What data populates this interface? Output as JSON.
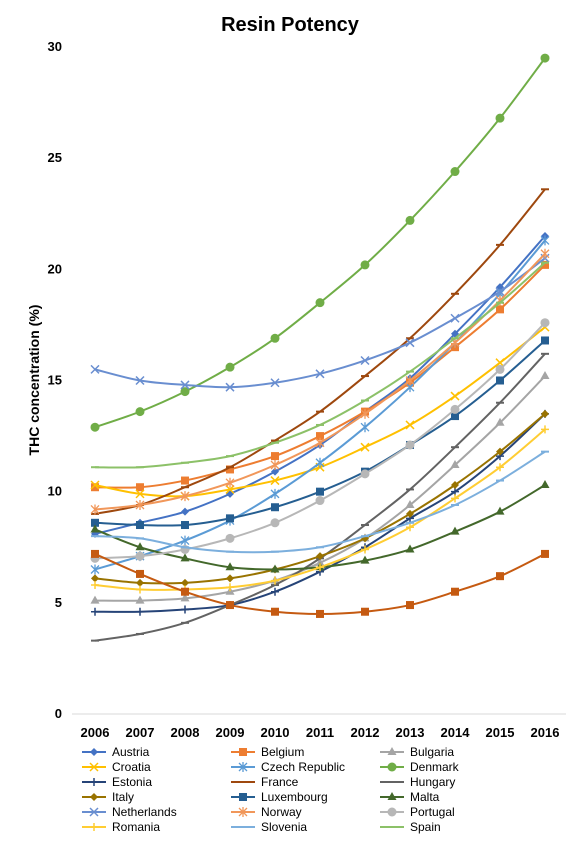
{
  "chart_data": {
    "type": "line",
    "title": "Resin Potency",
    "xlabel": "",
    "ylabel": "THC concentration (%)",
    "ylim": [
      0,
      30
    ],
    "yticks": [
      0,
      5,
      10,
      15,
      20,
      25,
      30
    ],
    "categories": [
      "2006",
      "2007",
      "2008",
      "2009",
      "2010",
      "2011",
      "2012",
      "2013",
      "2014",
      "2015",
      "2016"
    ],
    "grid": false,
    "legend_position": "bottom",
    "series": [
      {
        "name": "Austria",
        "color": "#4472C4",
        "marker": "diamond",
        "values": [
          8.1,
          8.6,
          9.1,
          9.9,
          10.9,
          12.1,
          13.6,
          15.1,
          17.1,
          19.2,
          21.5
        ]
      },
      {
        "name": "Belgium",
        "color": "#ED7D31",
        "marker": "square",
        "values": [
          10.2,
          10.2,
          10.5,
          11.0,
          11.6,
          12.5,
          13.6,
          14.9,
          16.5,
          18.2,
          20.2
        ]
      },
      {
        "name": "Bulgaria",
        "color": "#A5A5A5",
        "marker": "triangle",
        "values": [
          5.1,
          5.1,
          5.2,
          5.5,
          6.0,
          6.8,
          7.9,
          9.4,
          11.2,
          13.1,
          15.2
        ]
      },
      {
        "name": "Croatia",
        "color": "#FFC000",
        "marker": "x",
        "values": [
          10.3,
          9.9,
          9.8,
          10.1,
          10.5,
          11.1,
          12.0,
          13.0,
          14.3,
          15.8,
          17.4
        ]
      },
      {
        "name": "Czech Republic",
        "color": "#5B9BD5",
        "marker": "star",
        "values": [
          6.5,
          7.1,
          7.8,
          8.7,
          9.9,
          11.3,
          12.9,
          14.7,
          16.7,
          18.9,
          21.3
        ]
      },
      {
        "name": "Denmark",
        "color": "#70AD47",
        "marker": "circle",
        "values": [
          12.9,
          13.6,
          14.5,
          15.6,
          16.9,
          18.5,
          20.2,
          22.2,
          24.4,
          26.8,
          29.5
        ]
      },
      {
        "name": "Estonia",
        "color": "#264478",
        "marker": "plus",
        "values": [
          4.6,
          4.6,
          4.7,
          4.9,
          5.5,
          6.4,
          7.5,
          8.8,
          10.0,
          11.6,
          13.5
        ]
      },
      {
        "name": "France",
        "color": "#9E480E",
        "marker": "dash",
        "values": [
          9.0,
          9.4,
          10.2,
          11.1,
          12.3,
          13.6,
          15.2,
          16.9,
          18.9,
          21.1,
          23.6
        ]
      },
      {
        "name": "Hungary",
        "color": "#636363",
        "marker": "dash",
        "values": [
          3.3,
          3.6,
          4.1,
          4.9,
          5.8,
          7.0,
          8.5,
          10.1,
          12.0,
          14.0,
          16.2
        ]
      },
      {
        "name": "Italy",
        "color": "#997300",
        "marker": "diamond",
        "values": [
          6.1,
          5.9,
          5.9,
          6.1,
          6.5,
          7.1,
          7.9,
          9.0,
          10.3,
          11.8,
          13.5
        ]
      },
      {
        "name": "Luxembourg",
        "color": "#255E91",
        "marker": "square",
        "values": [
          8.6,
          8.5,
          8.5,
          8.8,
          9.3,
          10.0,
          10.9,
          12.1,
          13.4,
          15.0,
          16.8
        ]
      },
      {
        "name": "Malta",
        "color": "#43682B",
        "marker": "triangle",
        "values": [
          8.3,
          7.5,
          7.0,
          6.6,
          6.5,
          6.6,
          6.9,
          7.4,
          8.2,
          9.1,
          10.3
        ]
      },
      {
        "name": "Netherlands",
        "color": "#698ED0",
        "marker": "x",
        "values": [
          15.5,
          15.0,
          14.8,
          14.7,
          14.9,
          15.3,
          15.9,
          16.7,
          17.8,
          19.0,
          20.5
        ]
      },
      {
        "name": "Norway",
        "color": "#F1975A",
        "marker": "star",
        "values": [
          9.2,
          9.4,
          9.8,
          10.4,
          11.2,
          12.2,
          13.5,
          15.0,
          16.7,
          18.6,
          20.7
        ]
      },
      {
        "name": "Portugal",
        "color": "#B7B7B7",
        "marker": "circle",
        "values": [
          7.0,
          7.1,
          7.4,
          7.9,
          8.6,
          9.6,
          10.8,
          12.1,
          13.7,
          15.5,
          17.6
        ]
      },
      {
        "name": "Romania",
        "color": "#FFCD33",
        "marker": "plus",
        "values": [
          5.8,
          5.6,
          5.6,
          5.7,
          6.0,
          6.6,
          7.4,
          8.4,
          9.7,
          11.1,
          12.8
        ]
      },
      {
        "name": "Slovenia",
        "color": "#7CAFDD",
        "marker": "dash",
        "values": [
          8.0,
          7.9,
          7.5,
          7.3,
          7.3,
          7.5,
          8.0,
          8.6,
          9.4,
          10.5,
          11.8
        ]
      },
      {
        "name": "Spain",
        "color": "#8CC168",
        "marker": "dash",
        "values": [
          11.1,
          11.1,
          11.3,
          11.6,
          12.2,
          13.0,
          14.1,
          15.4,
          16.9,
          18.5,
          20.3
        ]
      },
      {
        "name": "",
        "color": "#C55A11",
        "marker": "square",
        "values": [
          7.2,
          6.3,
          5.5,
          4.9,
          4.6,
          4.5,
          4.6,
          4.9,
          5.5,
          6.2,
          7.2
        ]
      }
    ]
  }
}
